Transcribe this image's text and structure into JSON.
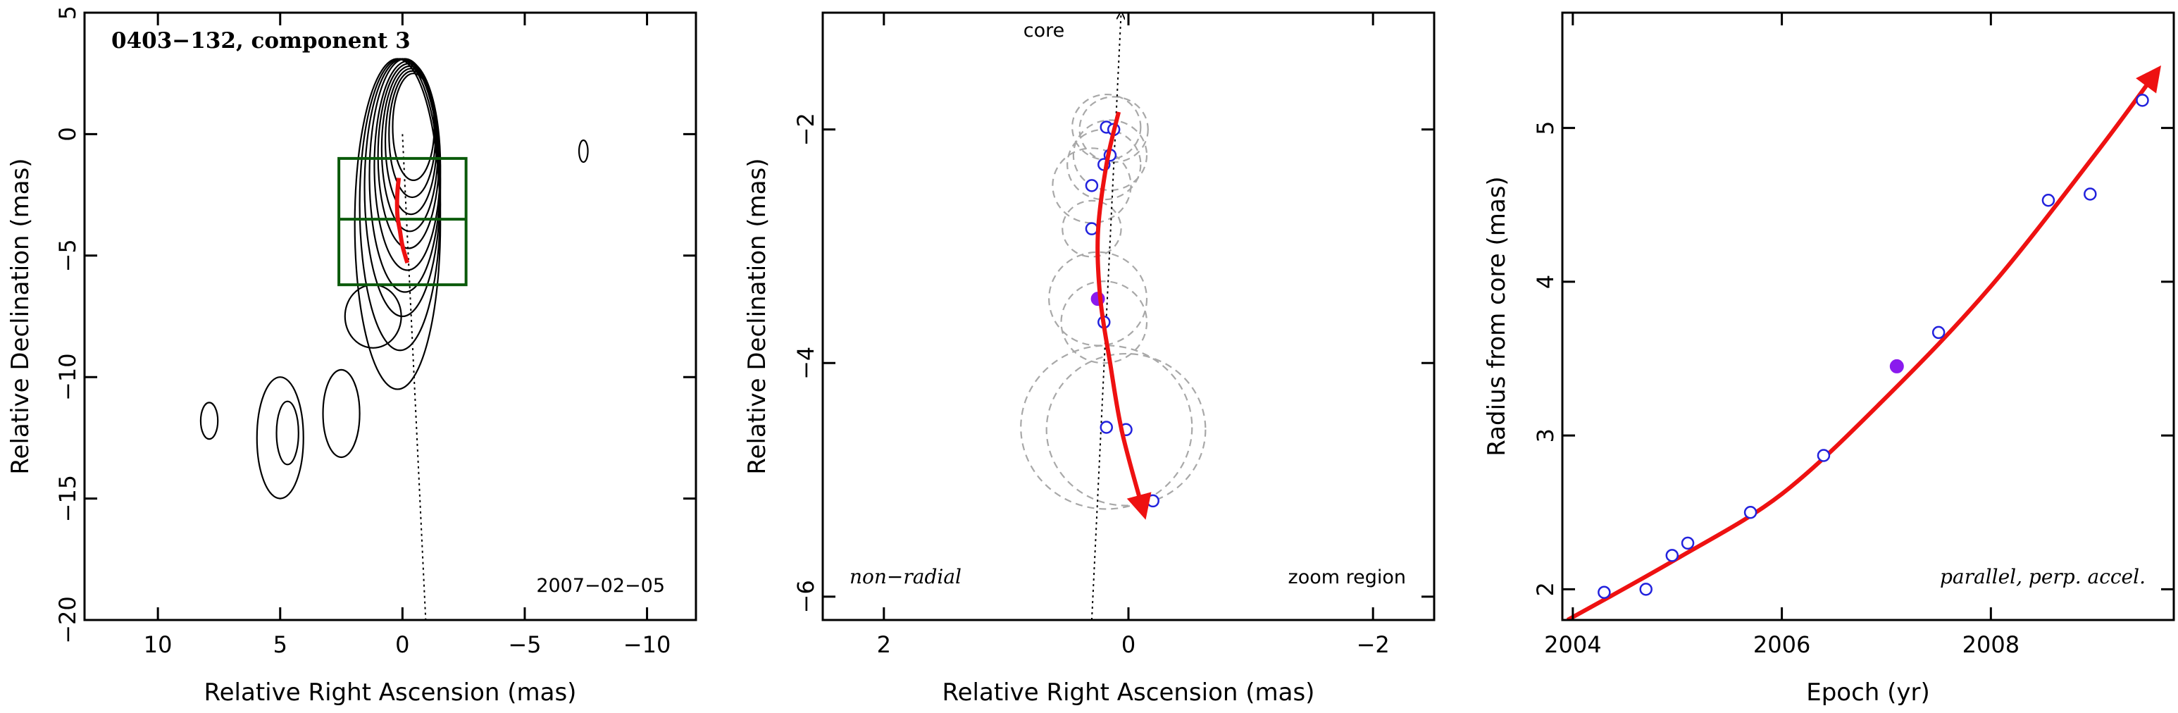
{
  "colors": {
    "fit_line": "#ee1111",
    "open_marker": "#2222dd",
    "filled_marker": "#8a1aee",
    "zoom_box": "#0a5a0a",
    "circles": "#a8a8a8"
  },
  "chart_data": [
    {
      "type": "contour-map",
      "title": "0403−132, component 3",
      "xlabel": "Relative Right Ascension (mas)",
      "ylabel": "Relative Declination (mas)",
      "xlim": [
        13,
        -12
      ],
      "ylim": [
        -20,
        5
      ],
      "xticks": [
        10,
        5,
        0,
        -5,
        -10
      ],
      "xtick_labels": [
        "10",
        "5",
        "0",
        "−5",
        "−10"
      ],
      "yticks": [
        5,
        0,
        -5,
        -10,
        -15,
        -20
      ],
      "ytick_labels": [
        "5",
        "0",
        "−5",
        "−10",
        "−15",
        "−20"
      ],
      "date": "2007−02−05",
      "core_direction_line": [
        [
          0,
          0
        ],
        [
          -0.95,
          -20
        ]
      ],
      "zoom_box": {
        "x": [
          2.6,
          -2.6
        ],
        "y": [
          -6.2,
          -1.0
        ],
        "divider_y": -3.5
      },
      "trajectory": [
        [
          0.15,
          -1.8
        ],
        [
          0.2,
          -2.3
        ],
        [
          0.22,
          -2.8
        ],
        [
          0.2,
          -3.4
        ],
        [
          0.1,
          -4.0
        ],
        [
          0.0,
          -4.6
        ],
        [
          -0.2,
          -5.3
        ]
      ],
      "core_contours": [
        {
          "cx": -0.45,
          "cy": 0.3,
          "rx": 0.85,
          "ry": 2.2
        },
        {
          "cx": -0.4,
          "cy": 0.0,
          "rx": 0.95,
          "ry": 2.6
        },
        {
          "cx": -0.35,
          "cy": -0.3,
          "rx": 1.05,
          "ry": 3.0
        },
        {
          "cx": -0.3,
          "cy": -0.6,
          "rx": 1.15,
          "ry": 3.4
        },
        {
          "cx": -0.25,
          "cy": -0.9,
          "rx": 1.25,
          "ry": 3.8
        },
        {
          "cx": -0.2,
          "cy": -1.3,
          "rx": 1.35,
          "ry": 4.3
        },
        {
          "cx": -0.1,
          "cy": -1.7,
          "rx": 1.45,
          "ry": 4.8
        },
        {
          "cx": 0.0,
          "cy": -2.2,
          "rx": 1.55,
          "ry": 5.3
        },
        {
          "cx": 0.1,
          "cy": -2.9,
          "rx": 1.65,
          "ry": 6.0
        },
        {
          "cx": 0.2,
          "cy": -3.7,
          "rx": 1.75,
          "ry": 6.8
        }
      ],
      "extended_contours": [
        {
          "cx": 7.9,
          "cy": -11.8,
          "rx": 0.35,
          "ry": 0.75
        },
        {
          "cx": 5.0,
          "cy": -12.5,
          "rx": 0.95,
          "ry": 2.5
        },
        {
          "cx": 4.7,
          "cy": -12.3,
          "rx": 0.45,
          "ry": 1.3
        },
        {
          "cx": 2.5,
          "cy": -11.5,
          "rx": 0.75,
          "ry": 1.8
        },
        {
          "cx": 1.2,
          "cy": -7.5,
          "rx": 1.15,
          "ry": 1.3
        },
        {
          "cx": -7.4,
          "cy": -0.7,
          "rx": 0.18,
          "ry": 0.45
        }
      ]
    },
    {
      "type": "scatter",
      "xlabel": "Relative Right Ascension (mas)",
      "ylabel": "Relative Declination (mas)",
      "xlim": [
        2.5,
        -2.5
      ],
      "ylim": [
        -6.2,
        -1.0
      ],
      "xticks": [
        2,
        0,
        -2
      ],
      "xtick_labels": [
        "2",
        "0",
        "−2"
      ],
      "yticks": [
        -2,
        -4,
        -6
      ],
      "ytick_labels": [
        "−2",
        "−4",
        "−6"
      ],
      "core_label": "core",
      "annotation_left": "non−radial",
      "annotation_right": "zoom region",
      "core_direction_line": [
        [
          0.3,
          -6.2
        ],
        [
          0.06,
          -1.0
        ]
      ],
      "points": [
        {
          "x": 0.18,
          "y": -1.98,
          "r": 0.28
        },
        {
          "x": 0.12,
          "y": -2.0,
          "r": 0.28
        },
        {
          "x": 0.15,
          "y": -2.22,
          "r": 0.3
        },
        {
          "x": 0.2,
          "y": -2.3,
          "r": 0.3
        },
        {
          "x": 0.3,
          "y": -2.48,
          "r": 0.32
        },
        {
          "x": 0.3,
          "y": -2.85,
          "r": 0.24
        },
        {
          "x": 0.2,
          "y": -3.65,
          "r": 0.35
        },
        {
          "x": 0.18,
          "y": -4.55,
          "r": 0.7
        },
        {
          "x": 0.02,
          "y": -4.57,
          "r": 0.65
        },
        {
          "x": -0.2,
          "y": -5.18,
          "r": 0.0
        }
      ],
      "highlighted_point": {
        "x": 0.25,
        "y": -3.45,
        "r": 0.4
      },
      "trajectory": [
        [
          0.08,
          -1.85
        ],
        [
          0.18,
          -2.3
        ],
        [
          0.25,
          -2.9
        ],
        [
          0.23,
          -3.45
        ],
        [
          0.15,
          -4.0
        ],
        [
          0.05,
          -4.6
        ],
        [
          -0.13,
          -5.3
        ]
      ]
    },
    {
      "type": "scatter",
      "xlabel": "Epoch (yr)",
      "ylabel": "Radius from core (mas)",
      "xlim": [
        2003.9,
        2009.75
      ],
      "ylim": [
        1.8,
        5.75
      ],
      "xticks": [
        2004,
        2006,
        2008
      ],
      "xtick_labels": [
        "2004",
        "2006",
        "2008"
      ],
      "yticks": [
        2,
        3,
        4,
        5
      ],
      "ytick_labels": [
        "2",
        "3",
        "4",
        "5"
      ],
      "annotation": "parallel, perp. accel.",
      "points": [
        {
          "x": 2004.3,
          "y": 1.98
        },
        {
          "x": 2004.7,
          "y": 2.0
        },
        {
          "x": 2004.95,
          "y": 2.22
        },
        {
          "x": 2005.1,
          "y": 2.3
        },
        {
          "x": 2005.7,
          "y": 2.5
        },
        {
          "x": 2006.4,
          "y": 2.87
        },
        {
          "x": 2007.5,
          "y": 3.67
        },
        {
          "x": 2008.55,
          "y": 4.53
        },
        {
          "x": 2008.95,
          "y": 4.57
        },
        {
          "x": 2009.45,
          "y": 5.18
        }
      ],
      "highlighted_point": {
        "x": 2007.1,
        "y": 3.45
      },
      "fit": [
        [
          2003.95,
          1.8
        ],
        [
          2005.0,
          2.2
        ],
        [
          2006.0,
          2.62
        ],
        [
          2007.0,
          3.25
        ],
        [
          2008.0,
          3.97
        ],
        [
          2009.0,
          4.83
        ],
        [
          2009.6,
          5.38
        ]
      ]
    }
  ]
}
